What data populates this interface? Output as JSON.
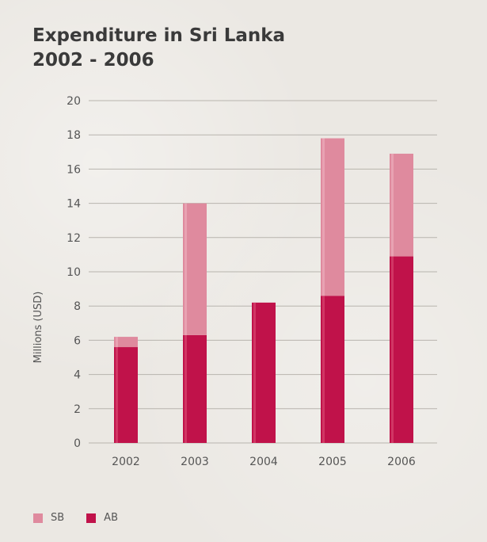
{
  "title_line1": "Expenditure in Sri Lanka",
  "title_line2": "2002 - 2006",
  "colors": {
    "sb": "#df8a9e",
    "ab": "#c0124a",
    "grid": "#b8b4ae",
    "text": "#555555"
  },
  "chart_data": {
    "type": "bar",
    "stacked": true,
    "categories": [
      "2002",
      "2003",
      "2004",
      "2005",
      "2006"
    ],
    "series": [
      {
        "name": "AB",
        "values": [
          5.6,
          6.3,
          8.2,
          8.6,
          10.9
        ]
      },
      {
        "name": "SB",
        "values": [
          0.6,
          7.7,
          0.0,
          9.2,
          6.0
        ]
      }
    ],
    "totals": [
      6.2,
      14.0,
      8.2,
      17.8,
      16.9
    ],
    "title": "Expenditure in Sri Lanka 2002 - 2006",
    "xlabel": "",
    "ylabel": "Millions (USD)",
    "ylim": [
      0,
      20
    ],
    "yticks": [
      "0",
      "2",
      "4",
      "6",
      "8",
      "10",
      "12",
      "14",
      "16",
      "18",
      "20"
    ],
    "grid": true,
    "legend_position": "bottom-left"
  },
  "legend": [
    {
      "label": "SB",
      "color": "#df8a9e"
    },
    {
      "label": "AB",
      "color": "#c0124a"
    }
  ]
}
